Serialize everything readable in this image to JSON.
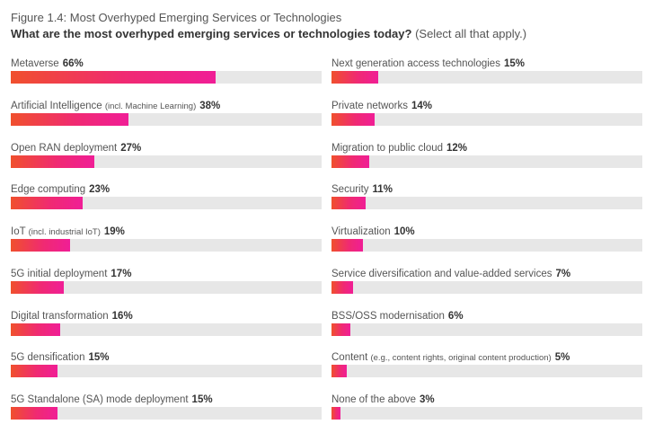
{
  "figure_label": "Figure 1.4: Most Overhyped Emerging Services or Technologies",
  "question": "What are the most overhyped emerging services or technologies today?",
  "question_note": "(Select all that apply.)",
  "colors": {
    "track": "#e7e7e7",
    "bar_start": "#f0502d",
    "bar_end": "#f01e96"
  },
  "chart_data": {
    "type": "bar",
    "orientation": "horizontal",
    "xlim": [
      0,
      100
    ],
    "unit": "%",
    "items": [
      {
        "label": "Metaverse",
        "note": "",
        "value": 66,
        "value_label": "66%"
      },
      {
        "label": "Artificial Intelligence",
        "note": "(incl. Machine Learning)",
        "value": 38,
        "value_label": "38%"
      },
      {
        "label": "Open RAN deployment",
        "note": "",
        "value": 27,
        "value_label": "27%"
      },
      {
        "label": "Edge computing",
        "note": "",
        "value": 23,
        "value_label": "23%"
      },
      {
        "label": "IoT",
        "note": "(incl.  industrial IoT)",
        "value": 19,
        "value_label": "19%"
      },
      {
        "label": "5G initial deployment",
        "note": "",
        "value": 17,
        "value_label": "17%"
      },
      {
        "label": "Digital transformation",
        "note": "",
        "value": 16,
        "value_label": "16%"
      },
      {
        "label": "5G densification",
        "note": "",
        "value": 15,
        "value_label": "15%"
      },
      {
        "label": "5G Standalone (SA) mode deployment",
        "note": "",
        "value": 15,
        "value_label": "15%"
      },
      {
        "label": "Next generation access technologies",
        "note": "",
        "value": 15,
        "value_label": "15%"
      },
      {
        "label": "Private networks",
        "note": "",
        "value": 14,
        "value_label": "14%"
      },
      {
        "label": "Migration to public cloud",
        "note": "",
        "value": 12,
        "value_label": "12%"
      },
      {
        "label": "Security",
        "note": "",
        "value": 11,
        "value_label": "11%"
      },
      {
        "label": "Virtualization",
        "note": "",
        "value": 10,
        "value_label": "10%"
      },
      {
        "label": "Service diversification and value-added services",
        "note": "",
        "value": 7,
        "value_label": "7%"
      },
      {
        "label": "BSS/OSS modernisation",
        "note": "",
        "value": 6,
        "value_label": "6%"
      },
      {
        "label": "Content",
        "note": "(e.g., content rights, original content production)",
        "value": 5,
        "value_label": "5%"
      },
      {
        "label": "None of the above",
        "note": "",
        "value": 3,
        "value_label": "3%"
      }
    ]
  }
}
